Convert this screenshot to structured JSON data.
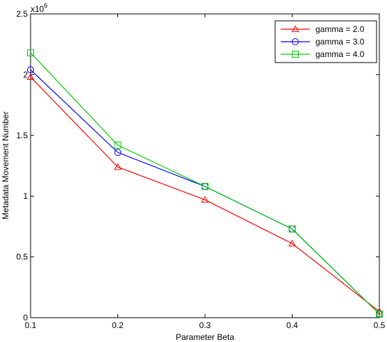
{
  "chart_data": {
    "type": "line",
    "xlabel": "Parameter Beta",
    "ylabel": "Metadata Movement Number",
    "y_exponent_label": "x10",
    "y_exponent_power": "6",
    "x": [
      0.1,
      0.2,
      0.3,
      0.4,
      0.5
    ],
    "x_tick_labels": [
      "0.1",
      "0.2",
      "0.3",
      "0.4",
      "0.5"
    ],
    "y_ticks": [
      0,
      0.5,
      1,
      1.5,
      2,
      2.5
    ],
    "y_tick_labels": [
      "0",
      "0.5",
      "1",
      "1.5",
      "2",
      "2.5"
    ],
    "xlim": [
      0.1,
      0.5
    ],
    "ylim": [
      0,
      2.5
    ],
    "y_scale_multiplier": 1000000,
    "legend_position": "top-right",
    "grid": false,
    "series": [
      {
        "name": "gamma = 2.0",
        "color": "#ff0000",
        "marker": "triangle",
        "values": [
          1.98,
          1.24,
          0.97,
          0.61,
          0.05
        ]
      },
      {
        "name": "gamma = 3.0",
        "color": "#0000ff",
        "marker": "circle",
        "values": [
          2.04,
          1.36,
          1.08,
          0.73,
          0.03
        ]
      },
      {
        "name": "gamma = 4.0",
        "color": "#00cc00",
        "marker": "square",
        "values": [
          2.18,
          1.42,
          1.08,
          0.73,
          0.03
        ]
      }
    ]
  }
}
